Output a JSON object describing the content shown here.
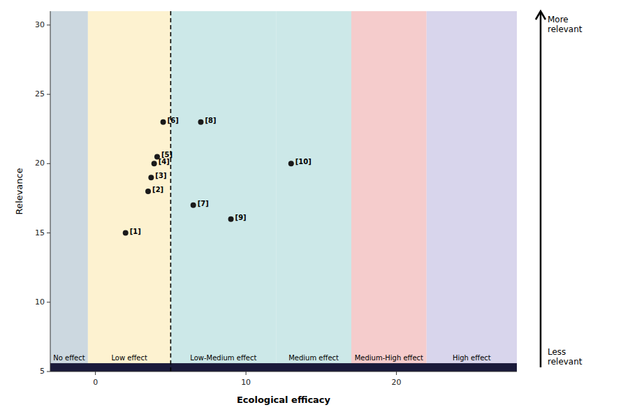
{
  "chart_data": {
    "type": "scatter",
    "xlabel": "Ecological efficacy",
    "ylabel": "Relevance",
    "x": [
      2,
      3.5,
      3.7,
      3.9,
      4.1,
      4.5,
      6.5,
      7.0,
      9.0,
      13.0
    ],
    "values": [
      15,
      18,
      19,
      20,
      20.5,
      23,
      17,
      23,
      16,
      20
    ],
    "point_labels": [
      "[1]",
      "[2]",
      "[3]",
      "[4]",
      "[5]",
      "[6]",
      "[7]",
      "[8]",
      "[9]",
      "[10]"
    ],
    "color": "#1a1a1a",
    "xlim": [
      -3,
      28
    ],
    "ylim": [
      5,
      31
    ],
    "xticks": [
      0,
      10,
      20
    ],
    "yticks": [
      5,
      10,
      15,
      20,
      25,
      30
    ],
    "regions": [
      {
        "xmin": -3,
        "xmax": -0.5,
        "color": "#ccd8e0",
        "label": "No effect"
      },
      {
        "xmin": -0.5,
        "xmax": 5,
        "color": "#fdf2d0",
        "label": "Low effect"
      },
      {
        "xmin": 5,
        "xmax": 12,
        "color": "#cce8e8",
        "label": "Low-Medium effect"
      },
      {
        "xmin": 12,
        "xmax": 17,
        "color": "#cce8e8",
        "label": "Medium effect"
      },
      {
        "xmin": 17,
        "xmax": 22,
        "color": "#f5cccc",
        "label": "Medium-High effect"
      },
      {
        "xmin": 22,
        "xmax": 28,
        "color": "#d8d5ec",
        "label": "High effect"
      }
    ],
    "bottom_bar": {
      "ymin": 5.0,
      "ymax": 5.6,
      "color": "#1a1a3a"
    },
    "reference_line_x": 5,
    "arrow_labels": {
      "more": "More\nrelevant",
      "less": "Less\nrelevant"
    }
  }
}
